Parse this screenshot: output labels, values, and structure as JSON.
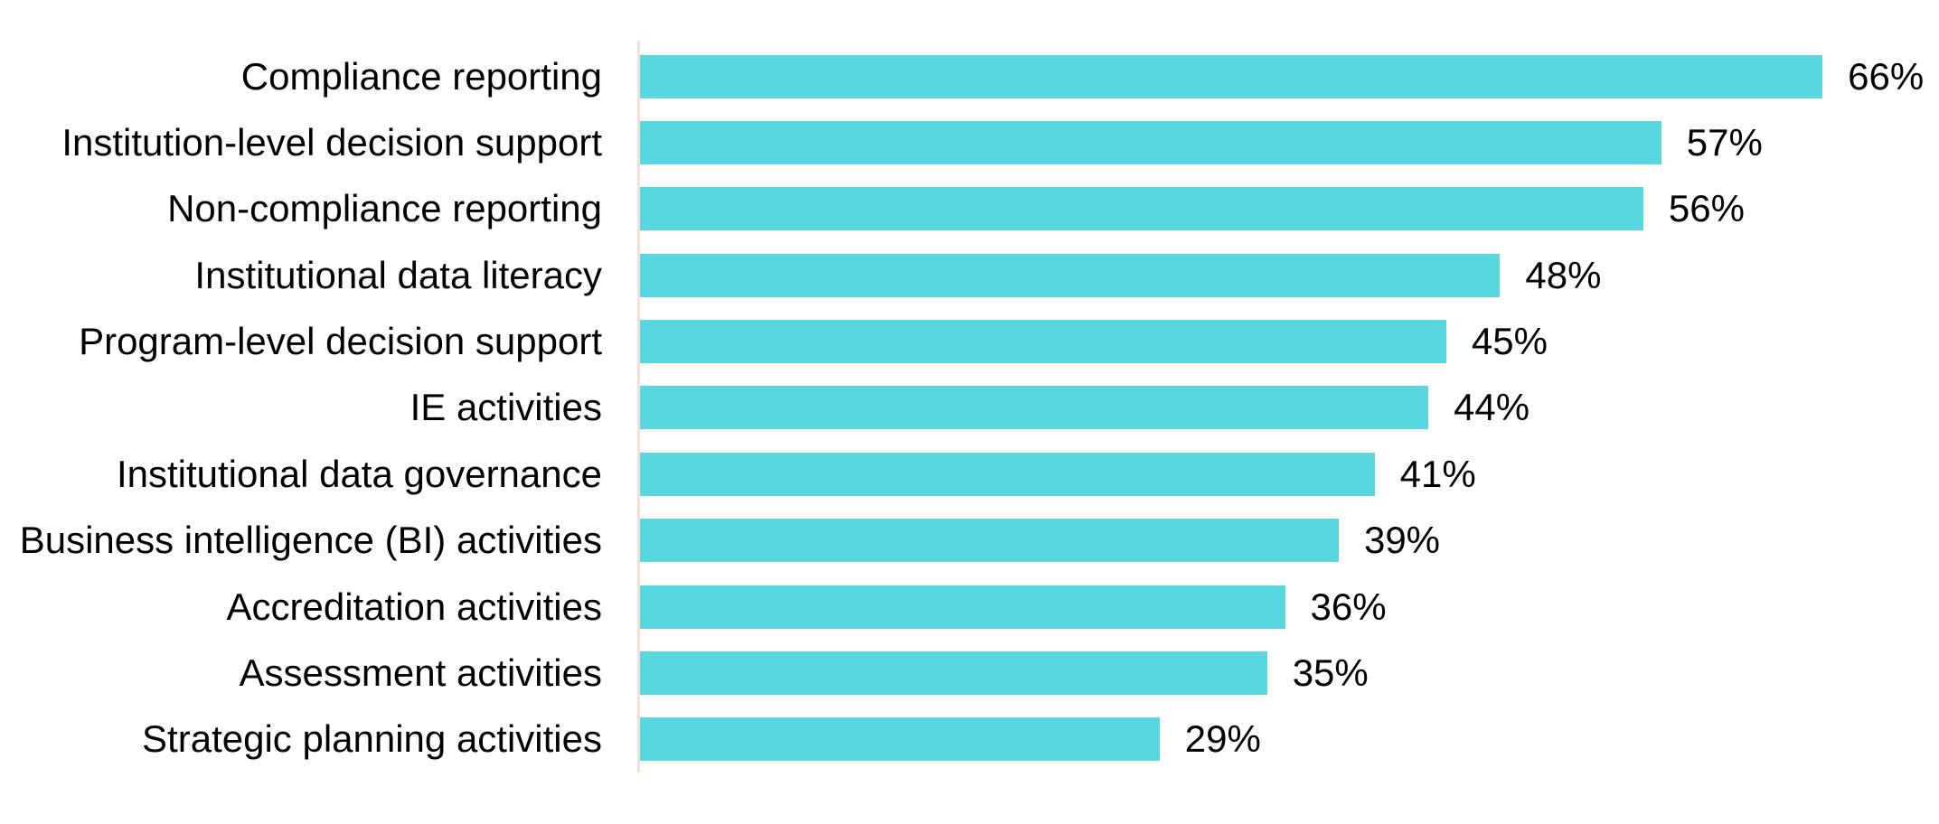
{
  "chart_data": {
    "type": "bar",
    "orientation": "horizontal",
    "title": "",
    "xlabel": "",
    "ylabel": "",
    "grid": false,
    "legend": false,
    "xlim": [
      0,
      72.5
    ],
    "bar_color": "#58D7E1",
    "axis_line_color": "#F6DFD9",
    "text_color": "#000000",
    "categories": [
      "Compliance reporting",
      "Institution-level decision support",
      "Non-compliance reporting",
      "Institutional data literacy",
      "Program-level decision support",
      "IE activities",
      "Institutional data governance",
      "Business intelligence (BI) activities",
      "Accreditation activities",
      "Assessment activities",
      "Strategic planning activities"
    ],
    "values": [
      66,
      57,
      56,
      48,
      45,
      44,
      41,
      39,
      36,
      35,
      29
    ],
    "value_labels": [
      "66%",
      "57%",
      "56%",
      "48%",
      "45%",
      "44%",
      "41%",
      "39%",
      "36%",
      "35%",
      "29%"
    ]
  }
}
